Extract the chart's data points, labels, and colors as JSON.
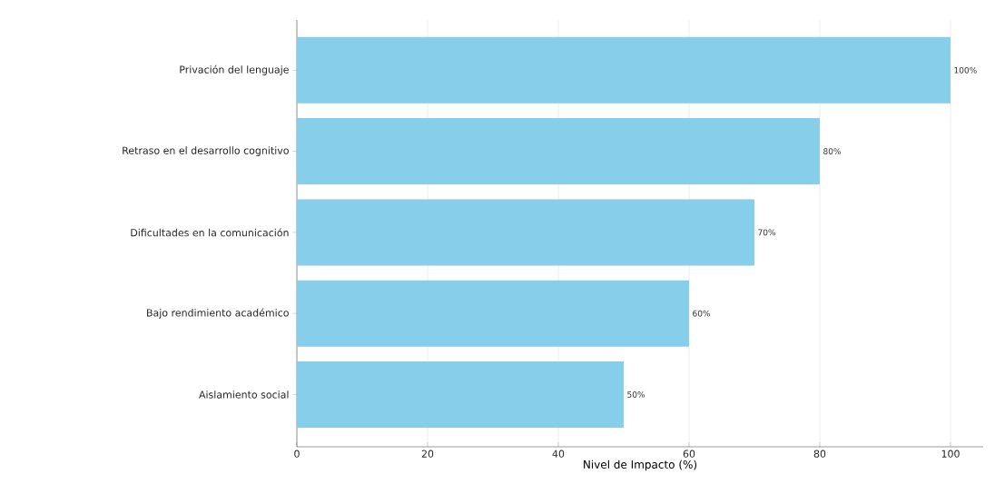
{
  "chart_data": {
    "type": "bar",
    "orientation": "horizontal",
    "xlabel": "Nivel de Impacto (%)",
    "categories": [
      "Privación del lenguaje",
      "Retraso en el desarrollo cognitivo",
      "Dificultades en la comunicación",
      "Bajo rendimiento académico",
      "Aislamiento social"
    ],
    "values": [
      100,
      80,
      70,
      60,
      50
    ],
    "value_labels": [
      "100%",
      "80%",
      "70%",
      "60%",
      "50%"
    ],
    "color": "#87ceeb",
    "xlim": [
      0,
      105
    ],
    "xticks": [
      0,
      20,
      40,
      60,
      80,
      100
    ],
    "grid": "x"
  }
}
